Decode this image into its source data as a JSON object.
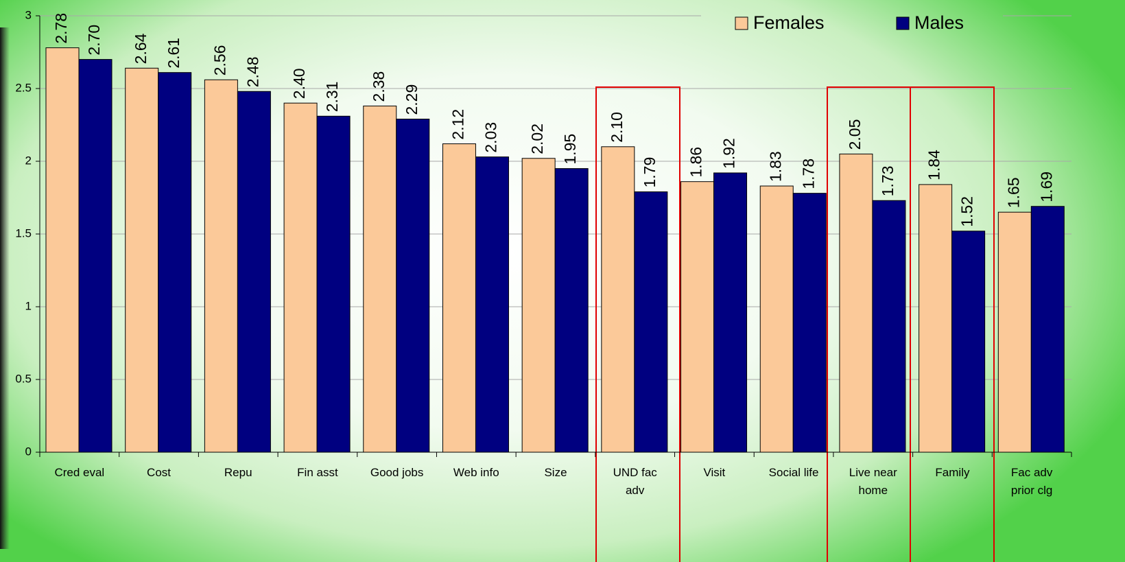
{
  "chart_data": {
    "type": "bar",
    "categories": [
      "Cred eval",
      "Cost",
      "Repu",
      "Fin asst",
      "Good jobs",
      "Web info",
      "Size",
      "UND fac adv",
      "Visit",
      "Social life",
      "Live near home",
      "Family",
      "Fac adv prior clg"
    ],
    "series": [
      {
        "name": "Females",
        "color": "#fbc999",
        "values": [
          2.78,
          2.64,
          2.56,
          2.4,
          2.38,
          2.12,
          2.02,
          2.1,
          1.86,
          1.83,
          2.05,
          1.84,
          1.65
        ],
        "value_labels": [
          "2.78",
          "2.64",
          "2.56",
          "2.40",
          "2.38",
          "2.12",
          "2.02",
          "2.10",
          "1.86",
          "1.83",
          "2.05",
          "1.84",
          "1.65"
        ]
      },
      {
        "name": "Males",
        "color": "#000080",
        "values": [
          2.7,
          2.61,
          2.48,
          2.31,
          2.29,
          2.03,
          1.95,
          1.79,
          1.92,
          1.78,
          1.73,
          1.52,
          1.69
        ],
        "value_labels": [
          "2.70",
          "2.61",
          "2.48",
          "2.31",
          "2.29",
          "2.03",
          "1.95",
          "1.79",
          "1.92",
          "1.78",
          "1.73",
          "1.52",
          "1.69"
        ]
      }
    ],
    "ylim": [
      0,
      3
    ],
    "yticks": [
      0,
      0.5,
      1,
      1.5,
      2,
      2.5,
      3
    ],
    "grid": true,
    "legend": "top-right"
  }
}
